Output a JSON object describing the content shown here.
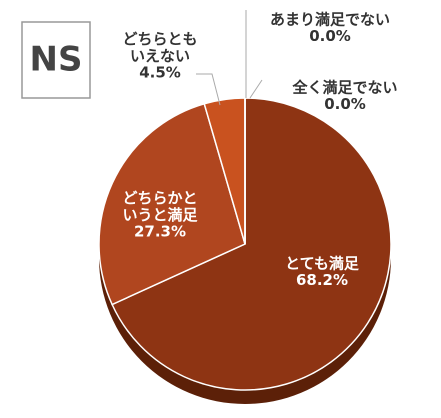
{
  "badge": "NS",
  "chart_data": {
    "type": "pie",
    "categories": [
      "とても満足",
      "どちらかと\nいうと満足",
      "どちらとも\nいえない",
      "あまり満足でない",
      "全く満足でない"
    ],
    "values": [
      68.2,
      27.3,
      4.5,
      0.0,
      0.0
    ],
    "value_labels": [
      "68.2%",
      "27.3%",
      "4.5%",
      "0.0%",
      "0.0%"
    ],
    "colors": [
      "#8e3413",
      "#b0461f",
      "#c9521f",
      "#d86a30",
      "#e07a40"
    ]
  }
}
